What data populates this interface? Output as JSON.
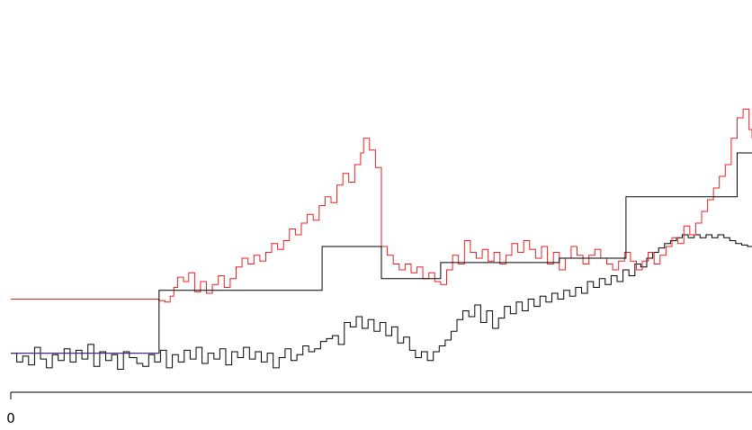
{
  "chart_data": {
    "type": "line",
    "step": true,
    "title": "",
    "xlabel": "",
    "ylabel": "",
    "xlim": [
      0,
      1000
    ],
    "ylim": [
      0,
      240
    ],
    "x_ticks": [
      {
        "value": 0,
        "label": "0"
      }
    ],
    "y_axis_shown": false,
    "grid": false,
    "legend": "none",
    "colors": {
      "observed": "#000000",
      "fitted_red": "#e82020",
      "segment_mean": "#000000",
      "baseline": "#4a2a8a"
    },
    "series": [
      {
        "role": "observed",
        "color": "#000000",
        "points": [
          [
            0,
            23
          ],
          [
            8,
            17
          ],
          [
            16,
            21
          ],
          [
            24,
            15
          ],
          [
            32,
            27
          ],
          [
            40,
            19
          ],
          [
            48,
            13
          ],
          [
            56,
            22
          ],
          [
            64,
            18
          ],
          [
            72,
            26
          ],
          [
            80,
            17
          ],
          [
            88,
            25
          ],
          [
            96,
            19
          ],
          [
            104,
            29
          ],
          [
            112,
            14
          ],
          [
            120,
            24
          ],
          [
            128,
            18
          ],
          [
            136,
            22
          ],
          [
            144,
            12
          ],
          [
            152,
            24
          ],
          [
            160,
            20
          ],
          [
            170,
            16
          ],
          [
            178,
            14
          ],
          [
            186,
            22
          ],
          [
            194,
            17
          ],
          [
            202,
            25
          ],
          [
            210,
            13
          ],
          [
            218,
            22
          ],
          [
            226,
            17
          ],
          [
            234,
            25
          ],
          [
            242,
            19
          ],
          [
            250,
            27
          ],
          [
            258,
            16
          ],
          [
            266,
            23
          ],
          [
            274,
            19
          ],
          [
            282,
            26
          ],
          [
            290,
            15
          ],
          [
            298,
            24
          ],
          [
            306,
            20
          ],
          [
            314,
            27
          ],
          [
            322,
            19
          ],
          [
            330,
            24
          ],
          [
            338,
            17
          ],
          [
            346,
            23
          ],
          [
            354,
            13
          ],
          [
            362,
            20
          ],
          [
            370,
            26
          ],
          [
            378,
            18
          ],
          [
            386,
            22
          ],
          [
            394,
            28
          ],
          [
            402,
            24
          ],
          [
            410,
            26
          ],
          [
            418,
            31
          ],
          [
            426,
            33
          ],
          [
            434,
            35
          ],
          [
            442,
            29
          ],
          [
            450,
            44
          ],
          [
            458,
            41
          ],
          [
            466,
            48
          ],
          [
            474,
            40
          ],
          [
            482,
            46
          ],
          [
            490,
            38
          ],
          [
            498,
            44
          ],
          [
            506,
            35
          ],
          [
            514,
            41
          ],
          [
            522,
            30
          ],
          [
            530,
            34
          ],
          [
            538,
            25
          ],
          [
            546,
            20
          ],
          [
            554,
            24
          ],
          [
            562,
            18
          ],
          [
            570,
            24
          ],
          [
            578,
            28
          ],
          [
            586,
            32
          ],
          [
            594,
            38
          ],
          [
            602,
            46
          ],
          [
            610,
            52
          ],
          [
            618,
            48
          ],
          [
            626,
            56
          ],
          [
            634,
            44
          ],
          [
            642,
            52
          ],
          [
            650,
            40
          ],
          [
            658,
            47
          ],
          [
            666,
            55
          ],
          [
            674,
            50
          ],
          [
            682,
            58
          ],
          [
            690,
            52
          ],
          [
            698,
            60
          ],
          [
            706,
            55
          ],
          [
            714,
            62
          ],
          [
            722,
            58
          ],
          [
            730,
            64
          ],
          [
            738,
            60
          ],
          [
            746,
            66
          ],
          [
            754,
            62
          ],
          [
            762,
            68
          ],
          [
            770,
            64
          ],
          [
            778,
            72
          ],
          [
            786,
            68
          ],
          [
            794,
            74
          ],
          [
            802,
            70
          ],
          [
            810,
            76
          ],
          [
            818,
            72
          ],
          [
            826,
            80
          ],
          [
            834,
            76
          ],
          [
            842,
            84
          ],
          [
            850,
            82
          ],
          [
            858,
            88
          ],
          [
            866,
            92
          ],
          [
            874,
            95
          ],
          [
            882,
            98
          ],
          [
            890,
            100
          ],
          [
            898,
            102
          ],
          [
            906,
            104
          ],
          [
            914,
            102
          ],
          [
            922,
            104
          ],
          [
            930,
            102
          ],
          [
            938,
            104
          ],
          [
            946,
            102
          ],
          [
            954,
            104
          ],
          [
            962,
            102
          ],
          [
            970,
            100
          ],
          [
            978,
            98
          ],
          [
            986,
            97
          ],
          [
            994,
            96
          ],
          [
            1000,
            96
          ]
        ]
      },
      {
        "role": "fitted_red",
        "color": "#e82020",
        "points": [
          [
            0,
            60
          ],
          [
            200,
            59
          ],
          [
            208,
            58
          ],
          [
            215,
            62
          ],
          [
            220,
            68
          ],
          [
            225,
            75
          ],
          [
            233,
            72
          ],
          [
            240,
            78
          ],
          [
            248,
            65
          ],
          [
            256,
            72
          ],
          [
            264,
            64
          ],
          [
            272,
            70
          ],
          [
            280,
            76
          ],
          [
            288,
            68
          ],
          [
            296,
            74
          ],
          [
            304,
            82
          ],
          [
            312,
            88
          ],
          [
            320,
            84
          ],
          [
            328,
            90
          ],
          [
            336,
            86
          ],
          [
            344,
            92
          ],
          [
            352,
            98
          ],
          [
            360,
            94
          ],
          [
            368,
            100
          ],
          [
            376,
            108
          ],
          [
            384,
            104
          ],
          [
            392,
            112
          ],
          [
            400,
            118
          ],
          [
            408,
            114
          ],
          [
            416,
            124
          ],
          [
            424,
            130
          ],
          [
            432,
            126
          ],
          [
            440,
            138
          ],
          [
            448,
            146
          ],
          [
            456,
            140
          ],
          [
            464,
            152
          ],
          [
            472,
            160
          ],
          [
            476,
            170
          ],
          [
            484,
            162
          ],
          [
            492,
            150
          ],
          [
            500,
            96
          ],
          [
            508,
            90
          ],
          [
            516,
            84
          ],
          [
            524,
            80
          ],
          [
            532,
            84
          ],
          [
            540,
            78
          ],
          [
            548,
            82
          ],
          [
            556,
            74
          ],
          [
            564,
            78
          ],
          [
            572,
            72
          ],
          [
            580,
            70
          ],
          [
            588,
            80
          ],
          [
            596,
            90
          ],
          [
            604,
            84
          ],
          [
            612,
            100
          ],
          [
            620,
            92
          ],
          [
            628,
            88
          ],
          [
            636,
            94
          ],
          [
            644,
            86
          ],
          [
            652,
            92
          ],
          [
            660,
            84
          ],
          [
            668,
            90
          ],
          [
            676,
            98
          ],
          [
            684,
            92
          ],
          [
            692,
            100
          ],
          [
            700,
            94
          ],
          [
            708,
            88
          ],
          [
            716,
            96
          ],
          [
            724,
            84
          ],
          [
            732,
            92
          ],
          [
            740,
            80
          ],
          [
            748,
            88
          ],
          [
            756,
            96
          ],
          [
            764,
            90
          ],
          [
            772,
            84
          ],
          [
            780,
            90
          ],
          [
            788,
            94
          ],
          [
            796,
            88
          ],
          [
            804,
            84
          ],
          [
            812,
            80
          ],
          [
            820,
            86
          ],
          [
            828,
            92
          ],
          [
            836,
            86
          ],
          [
            844,
            80
          ],
          [
            852,
            86
          ],
          [
            860,
            92
          ],
          [
            868,
            84
          ],
          [
            876,
            90
          ],
          [
            884,
            96
          ],
          [
            892,
            102
          ],
          [
            900,
            98
          ],
          [
            908,
            110
          ],
          [
            916,
            104
          ],
          [
            924,
            112
          ],
          [
            932,
            120
          ],
          [
            940,
            128
          ],
          [
            948,
            136
          ],
          [
            956,
            144
          ],
          [
            964,
            152
          ],
          [
            972,
            170
          ],
          [
            980,
            184
          ],
          [
            988,
            190
          ],
          [
            996,
            176
          ],
          [
            1000,
            170
          ]
        ]
      },
      {
        "role": "segment_mean",
        "color": "#000000",
        "points": [
          [
            0,
            23
          ],
          [
            200,
            23
          ],
          [
            200,
            66
          ],
          [
            420,
            66
          ],
          [
            420,
            96
          ],
          [
            500,
            96
          ],
          [
            500,
            74
          ],
          [
            580,
            74
          ],
          [
            580,
            85
          ],
          [
            740,
            85
          ],
          [
            740,
            88
          ],
          [
            830,
            88
          ],
          [
            830,
            130
          ],
          [
            980,
            130
          ],
          [
            980,
            160
          ],
          [
            1000,
            160
          ]
        ]
      },
      {
        "role": "baseline",
        "color": "#4a2a8a",
        "points": [
          [
            0,
            23
          ],
          [
            200,
            23
          ]
        ]
      }
    ]
  }
}
